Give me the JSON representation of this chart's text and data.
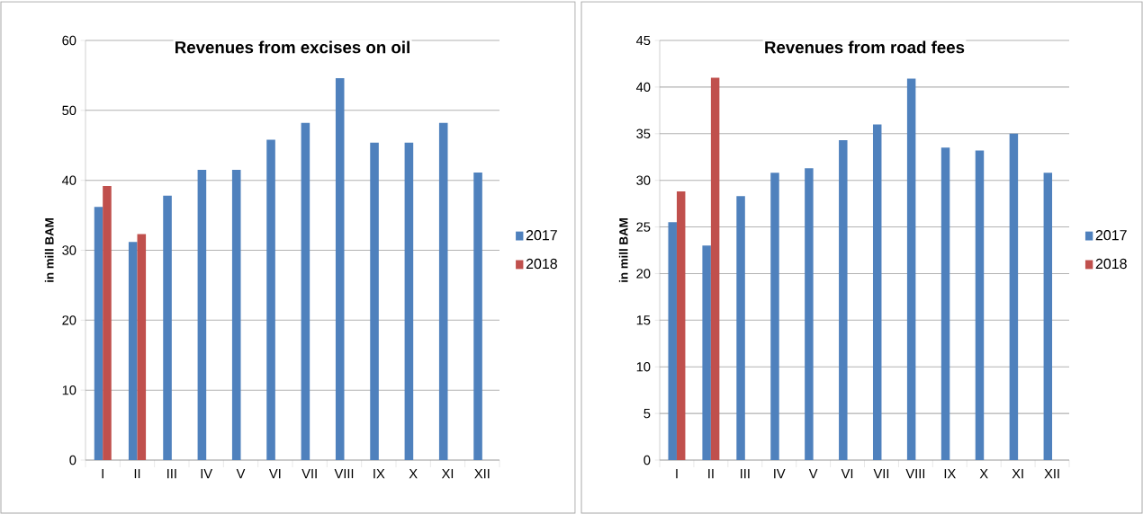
{
  "chart_data": [
    {
      "type": "bar",
      "title": "Revenues from excises on oil",
      "ylabel": "in mill BAM",
      "categories": [
        "I",
        "II",
        "III",
        "IV",
        "V",
        "VI",
        "VII",
        "VIII",
        "IX",
        "X",
        "XI",
        "XII"
      ],
      "series": [
        {
          "name": "2017",
          "color": "#4f81bd",
          "values": [
            36.2,
            31.2,
            37.8,
            41.5,
            41.5,
            45.8,
            48.2,
            54.6,
            45.4,
            45.4,
            48.2,
            41.1
          ]
        },
        {
          "name": "2018",
          "color": "#c0504d",
          "values": [
            39.2,
            32.3,
            null,
            null,
            null,
            null,
            null,
            null,
            null,
            null,
            null,
            null
          ]
        }
      ],
      "ylim": [
        0,
        60
      ],
      "yticks": [
        0,
        10,
        20,
        30,
        40,
        50,
        60
      ],
      "grid": "y",
      "legend": "right"
    },
    {
      "type": "bar",
      "title": "Revenues from road fees",
      "ylabel": "in mill BAM",
      "categories": [
        "I",
        "II",
        "III",
        "IV",
        "V",
        "VI",
        "VII",
        "VIII",
        "IX",
        "X",
        "XI",
        "XII"
      ],
      "series": [
        {
          "name": "2017",
          "color": "#4f81bd",
          "values": [
            25.5,
            23.0,
            28.3,
            30.8,
            31.3,
            34.3,
            36.0,
            40.9,
            33.5,
            33.2,
            35.0,
            30.8
          ]
        },
        {
          "name": "2018",
          "color": "#c0504d",
          "values": [
            28.8,
            41.0,
            null,
            null,
            null,
            null,
            null,
            null,
            null,
            null,
            null,
            null
          ]
        }
      ],
      "ylim": [
        0,
        45
      ],
      "yticks": [
        0,
        5,
        10,
        15,
        20,
        25,
        30,
        35,
        40,
        45
      ],
      "grid": "y",
      "legend": "right"
    }
  ]
}
